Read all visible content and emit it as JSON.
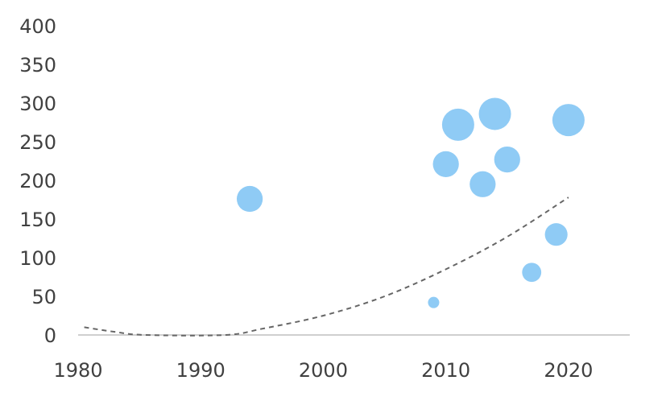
{
  "chart_data": {
    "type": "scatter",
    "subtype": "bubble",
    "title": "",
    "xlabel": "",
    "ylabel": "",
    "xlim": [
      1980,
      2025
    ],
    "ylim": [
      0,
      400
    ],
    "x_ticks": [
      "1980",
      "1990",
      "2000",
      "2010",
      "2020"
    ],
    "y_ticks": [
      "0",
      "50",
      "100",
      "150",
      "200",
      "250",
      "300",
      "350",
      "400"
    ],
    "grid": false,
    "legend": "none",
    "colors": {
      "bubble": "#8fcbf5",
      "trend": "#666666",
      "axis": "#bfbfbf",
      "text": "#404040"
    },
    "series": [
      {
        "points": [
          {
            "x": 1994,
            "y": 176,
            "size": 3
          },
          {
            "x": 2009,
            "y": 42,
            "size": 1
          },
          {
            "x": 2010,
            "y": 221,
            "size": 3
          },
          {
            "x": 2011,
            "y": 272,
            "size": 4
          },
          {
            "x": 2013,
            "y": 195,
            "size": 3
          },
          {
            "x": 2014,
            "y": 286,
            "size": 4
          },
          {
            "x": 2015,
            "y": 227,
            "size": 3
          },
          {
            "x": 2017,
            "y": 81,
            "size": 2
          },
          {
            "x": 2019,
            "y": 130,
            "size": 2.5
          },
          {
            "x": 2020,
            "y": 278,
            "size": 4
          }
        ]
      }
    ],
    "trendline": {
      "style": "dashed",
      "points": [
        {
          "x": 1980.5,
          "y": 10
        },
        {
          "x": 1983,
          "y": 4
        },
        {
          "x": 1985.5,
          "y": 0
        },
        {
          "x": 1992,
          "y": 0
        },
        {
          "x": 1995,
          "y": 8
        },
        {
          "x": 2000,
          "y": 25
        },
        {
          "x": 2005,
          "y": 50
        },
        {
          "x": 2010,
          "y": 85
        },
        {
          "x": 2015,
          "y": 127
        },
        {
          "x": 2020,
          "y": 178
        }
      ]
    }
  }
}
